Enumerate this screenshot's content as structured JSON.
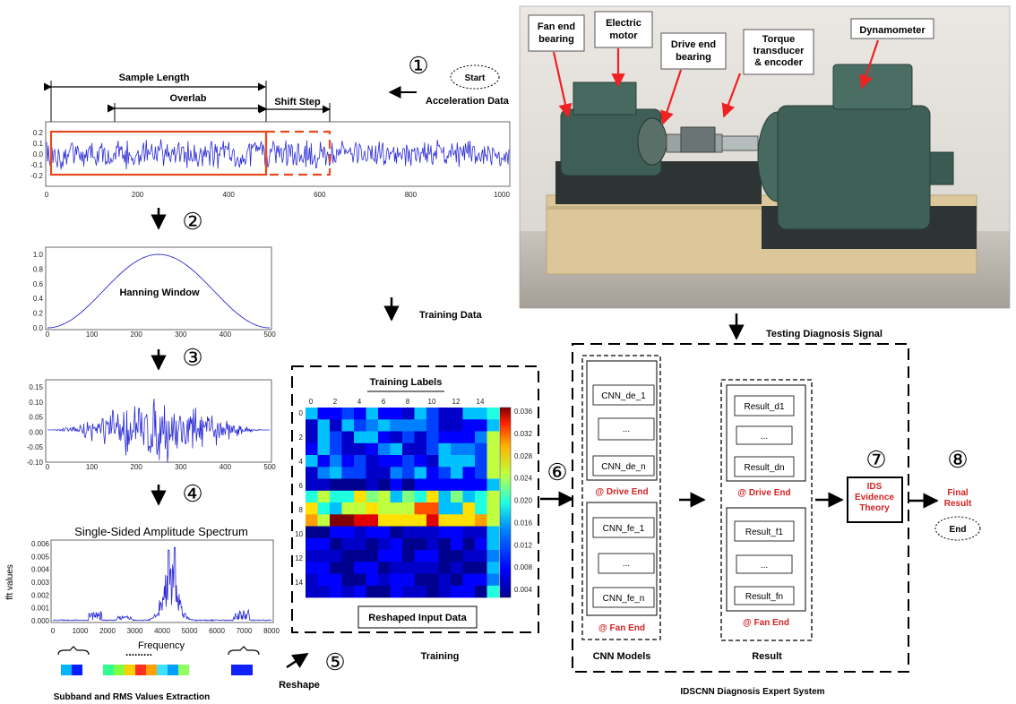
{
  "steps": {
    "s1": "①",
    "s2": "②",
    "s3": "③",
    "s4": "④",
    "s5": "⑤",
    "s6": "⑥",
    "s7": "⑦",
    "s8": "⑧"
  },
  "start_label": "Start",
  "end_label": "End",
  "acceleration_data": "Acceleration Data",
  "sample_length": "Sample Length",
  "overlab": "Overlab",
  "shift_step": "Shift Step",
  "signal_chart": {
    "x_ticks": [
      "0",
      "200",
      "400",
      "600",
      "800",
      "1000"
    ],
    "y_ticks": [
      "0.2",
      "0.1",
      "0.0",
      "-0.1",
      "-0.2"
    ]
  },
  "hanning_chart": {
    "label": "Hanning Window",
    "x_ticks": [
      "0",
      "100",
      "200",
      "300",
      "400",
      "500"
    ],
    "y_ticks": [
      "1.0",
      "0.8",
      "0.6",
      "0.4",
      "0.2",
      "0.0"
    ]
  },
  "windowed_chart": {
    "x_ticks": [
      "0",
      "100",
      "200",
      "300",
      "400",
      "500"
    ],
    "y_ticks": [
      "0.15",
      "0.10",
      "0.05",
      "0.00",
      "-0.05",
      "-0.10"
    ]
  },
  "spectrum_chart": {
    "title": "Single-Sided Amplitude Spectrum",
    "xlabel": "Frequency",
    "ylabel": "fft values",
    "x_ticks": [
      "0",
      "1000",
      "2000",
      "3000",
      "4000",
      "5000",
      "6000",
      "7000",
      "8000"
    ],
    "y_ticks": [
      "0.006",
      "0.005",
      "0.004",
      "0.003",
      "0.002",
      "0.001",
      "0.000"
    ]
  },
  "subband_label": "Subband and RMS Values Extraction",
  "reshape_label": "Reshape",
  "training_data": "Training Data",
  "training_labels": "Training Labels",
  "heatmap": {
    "x_ticks": [
      "0",
      "2",
      "4",
      "6",
      "8",
      "10",
      "12",
      "14"
    ],
    "y_ticks": [
      "0",
      "2",
      "4",
      "6",
      "8",
      "10",
      "12",
      "14"
    ],
    "colorbar_ticks": [
      "0.036",
      "0.032",
      "0.028",
      "0.024",
      "0.020",
      "0.016",
      "0.012",
      "0.008",
      "0.004"
    ]
  },
  "reshaped_input": "Reshaped Input Data",
  "training_caption": "Training",
  "photo_labels": {
    "fan_end": "Fan end\nbearing",
    "motor": "Electric\nmotor",
    "drive_end": "Drive end\nbearing",
    "torque": "Torque\ntransducer\n& encoder",
    "dyno": "Dynamometer"
  },
  "testing_signal": "Testing Diagnosis Signal",
  "cnn": {
    "de_1": "CNN_de_1",
    "de_dots": "...",
    "de_n": "CNN_de_n",
    "fe_1": "CNN_fe_1",
    "fe_dots": "...",
    "fe_n": "CNN_fe_n",
    "drive_end": "@ Drive End",
    "fan_end": "@ Fan End",
    "caption": "CNN Models"
  },
  "result": {
    "d1": "Result_d1",
    "d_dots": "...",
    "dn": "Result_dn",
    "f1": "Result_f1",
    "f_dots": "...",
    "fn": "Result_fn",
    "drive_end": "@ Drive End",
    "fan_end": "@ Fan End",
    "caption": "Result"
  },
  "ids_box": "IDS\nEvidence\nTheory",
  "final_result": "Final\nResult",
  "system_caption": "IDSCNN Diagnosis Expert System",
  "colors": {
    "red": "#d42222",
    "blue": "#1f1fd0",
    "orange_red": "#e84a1f"
  }
}
